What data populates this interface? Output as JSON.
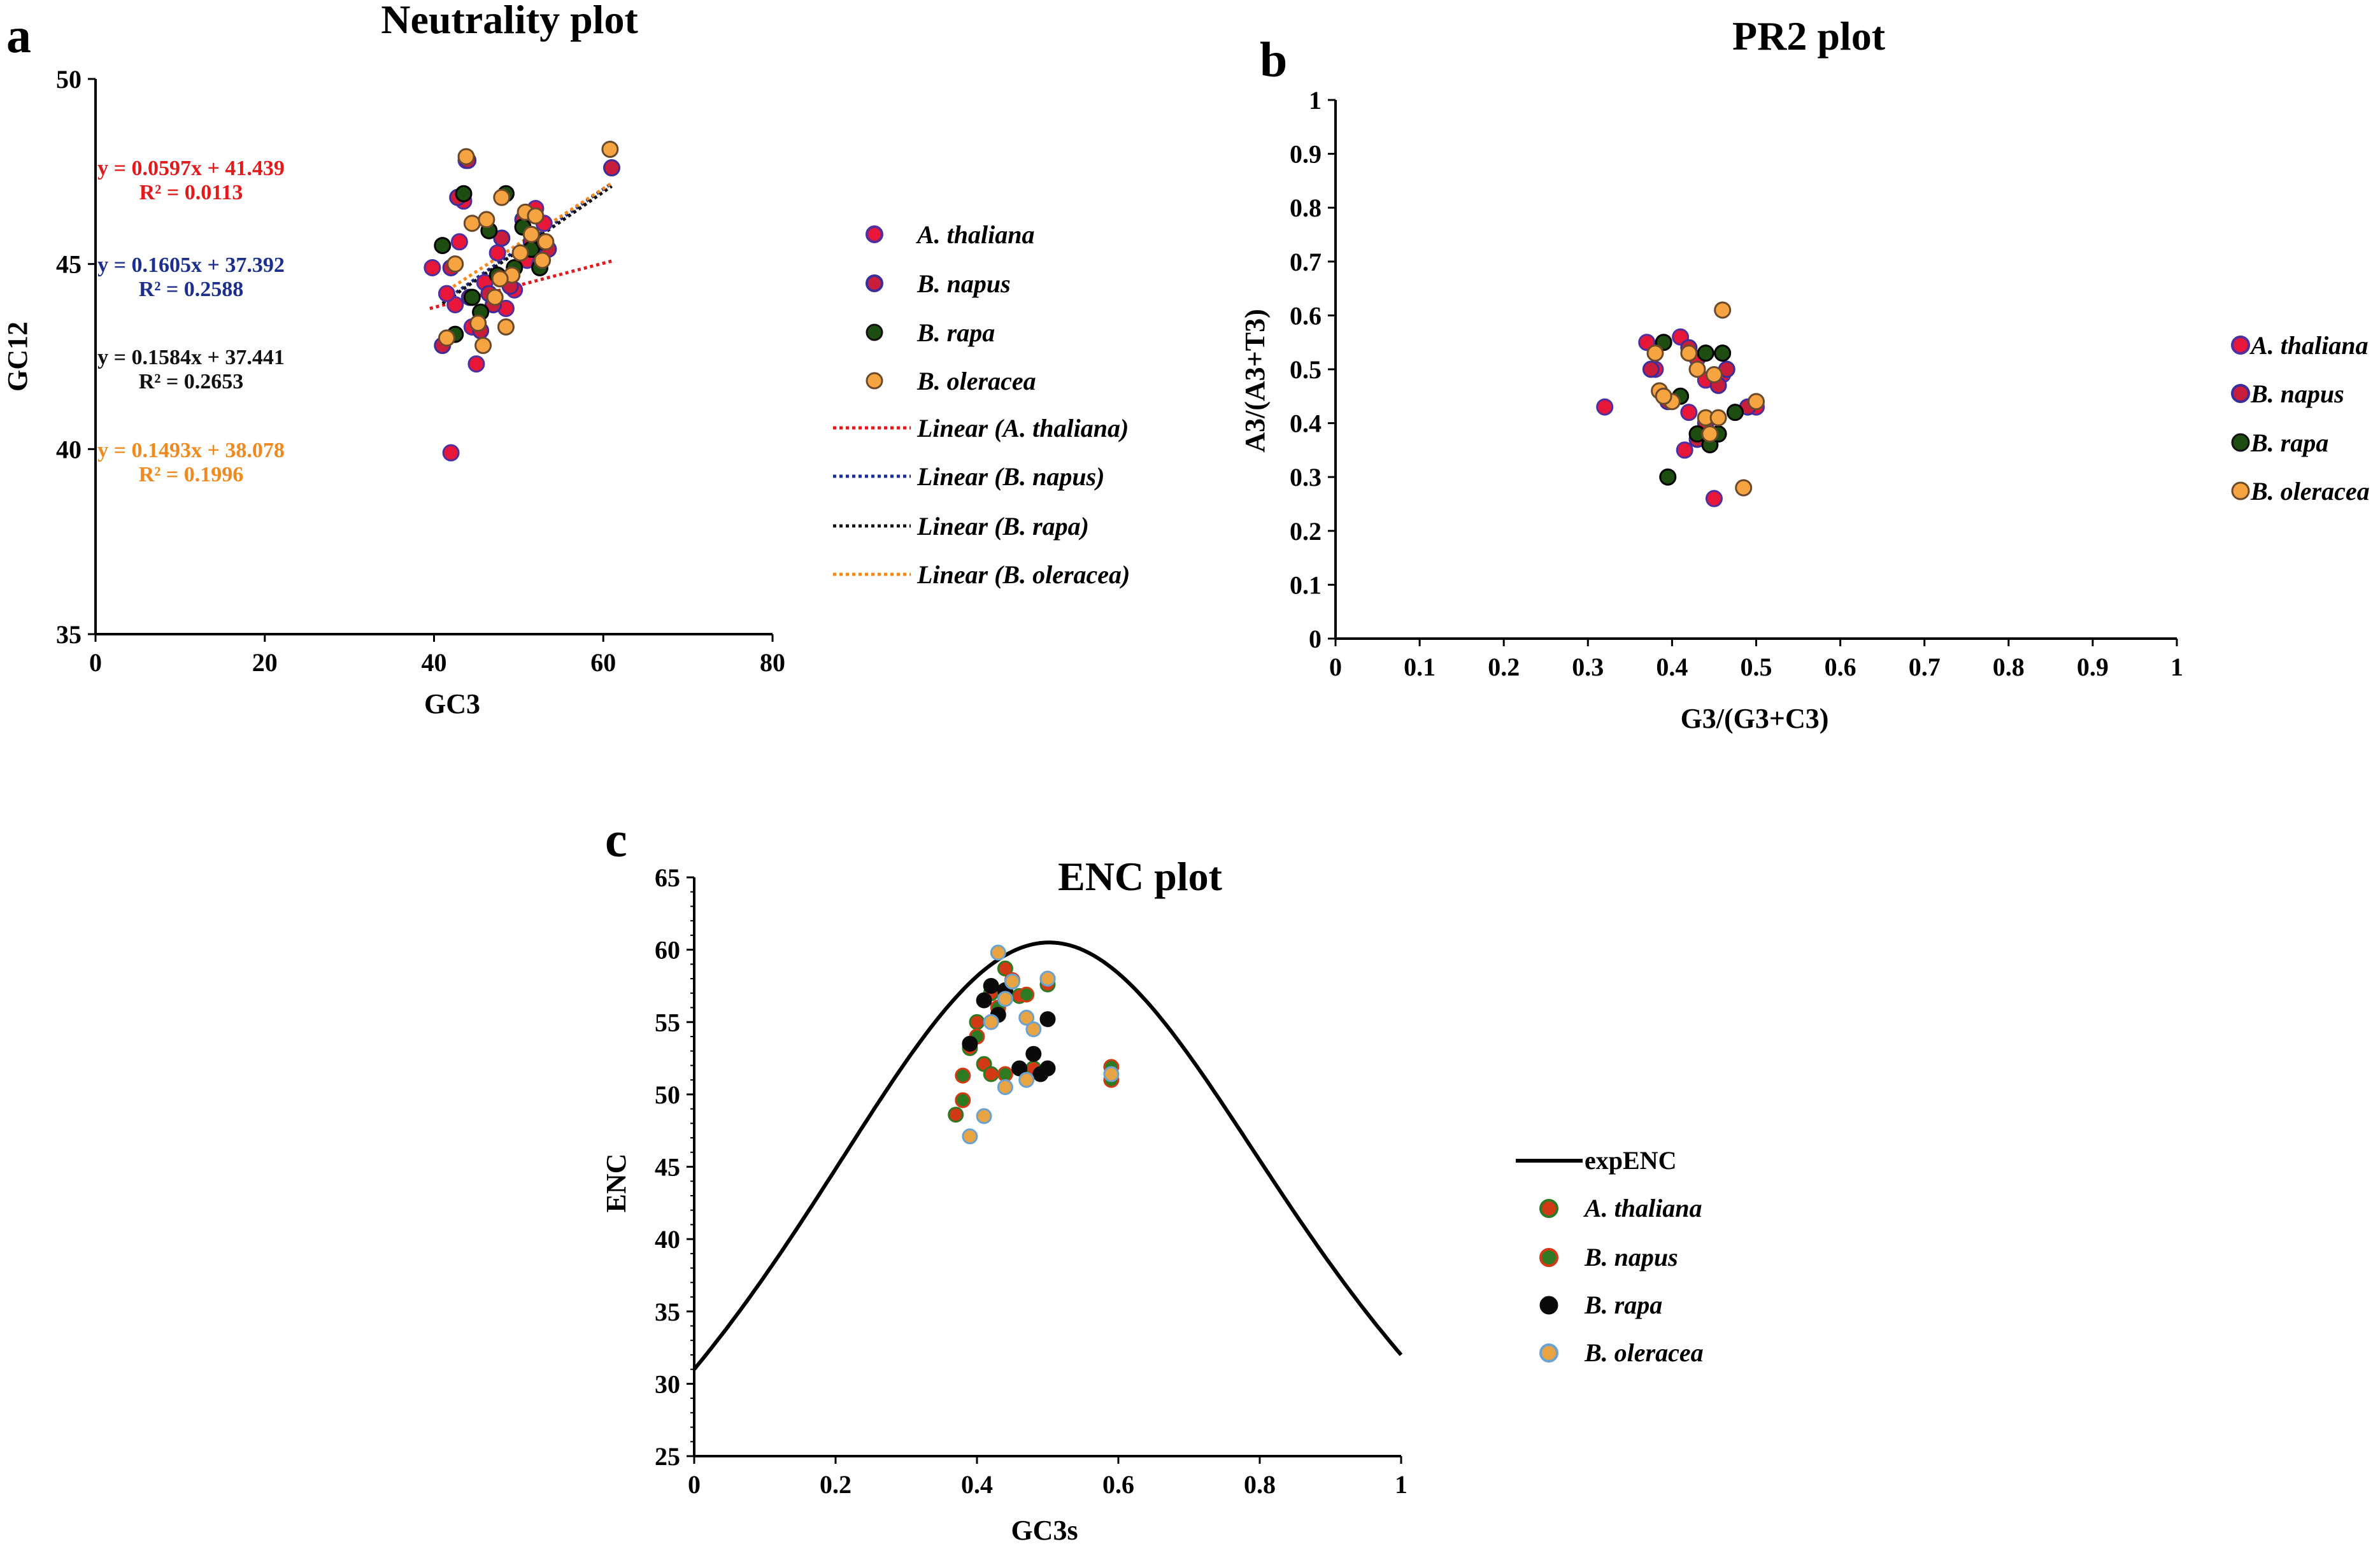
{
  "colors": {
    "a_thaliana_fill": "#e8173a",
    "a_thaliana_edge": "#5030a0",
    "b_napus_fill": "#c81e3c",
    "b_napus_edge": "#3b2d9b",
    "b_rapa_fill": "#1e4d12",
    "b_oleracea_fill": "#f5a441",
    "b_oleracea_edge": "#6a4a2a",
    "enc_thaliana": "#d23a16",
    "enc_napus": "#2e7a22",
    "enc_rapa": "#0a0a0a",
    "enc_oleracea": "#e8a442",
    "enc_oleracea_edge": "#6aa2d2",
    "eq_red": "#e31a1c",
    "eq_blue": "#1c2f8f",
    "eq_black": "#111111",
    "eq_orange": "#f08a1f"
  },
  "chart_data": [
    {
      "panel": "a",
      "type": "scatter",
      "title": "Neutrality plot",
      "xlabel": "GC3",
      "ylabel": "GC12",
      "xlim": [
        0,
        80
      ],
      "ylim": [
        35,
        50
      ],
      "xticks": [
        "0",
        "20",
        "40",
        "60",
        "80"
      ],
      "yticks": [
        "35",
        "40",
        "45",
        "50"
      ],
      "equations": [
        {
          "line": "y = 0.0597x + 41.439",
          "r2": "R² = 0.0113",
          "color_key": "eq_red"
        },
        {
          "line": "y = 0.1605x + 37.392",
          "r2": "R² = 0.2588",
          "color_key": "eq_blue"
        },
        {
          "line": "y = 0.1584x + 37.441",
          "r2": "R² = 0.2653",
          "color_key": "eq_black"
        },
        {
          "line": "y = 0.1493x + 38.078",
          "r2": "R² = 0.1996",
          "color_key": "eq_orange"
        }
      ],
      "legend": [
        "A. thaliana",
        "B. napus",
        "B. rapa",
        "B. oleracea",
        "Linear (A. thaliana)",
        "Linear (B. napus)",
        "Linear (B. rapa)",
        "Linear (B. oleracea)"
      ],
      "trendlines": [
        {
          "name": "Linear (A. thaliana)",
          "slope": 0.0597,
          "intercept": 41.439,
          "x": [
            39.5,
            61
          ],
          "color_key": "eq_red"
        },
        {
          "name": "Linear (B. napus)",
          "slope": 0.1605,
          "intercept": 37.392,
          "x": [
            42,
            61
          ],
          "color_key": "eq_blue"
        },
        {
          "name": "Linear (B. rapa)",
          "slope": 0.1584,
          "intercept": 37.441,
          "x": [
            41,
            61
          ],
          "color_key": "eq_black"
        },
        {
          "name": "Linear (B. oleracea)",
          "slope": 0.1493,
          "intercept": 38.078,
          "x": [
            41,
            61
          ],
          "color_key": "eq_orange"
        }
      ],
      "series": [
        {
          "name": "A. thaliana",
          "fill_key": "a_thaliana_fill",
          "edge_key": "a_thaliana_edge",
          "points": [
            [
              39.8,
              44.9
            ],
            [
              42,
              39.9
            ],
            [
              42.5,
              43.9
            ],
            [
              43,
              45.6
            ],
            [
              43.5,
              46.7
            ],
            [
              44.5,
              43.3
            ],
            [
              45,
              42.3
            ],
            [
              46,
              44.5
            ],
            [
              47.5,
              45.3
            ],
            [
              48.5,
              43.8
            ],
            [
              49.5,
              44.3
            ],
            [
              51,
              45.1
            ],
            [
              52,
              46.5
            ],
            [
              52.5,
              45.0
            ],
            [
              53,
              46.1
            ],
            [
              43.8,
              47.8
            ],
            [
              41.5,
              44.2
            ]
          ]
        },
        {
          "name": "B. napus",
          "fill_key": "b_napus_fill",
          "edge_key": "b_napus_edge",
          "points": [
            [
              41,
              42.8
            ],
            [
              42,
              44.9
            ],
            [
              42.8,
              46.8
            ],
            [
              44,
              47.8
            ],
            [
              45.5,
              43.2
            ],
            [
              46.5,
              44.2
            ],
            [
              48,
              45.7
            ],
            [
              49,
              44.4
            ],
            [
              50.5,
              46.2
            ],
            [
              51.5,
              45.6
            ],
            [
              52.5,
              45.3
            ],
            [
              53.5,
              45.4
            ],
            [
              61,
              47.6
            ],
            [
              47,
              43.9
            ],
            [
              44.2,
              44.1
            ]
          ]
        },
        {
          "name": "B. rapa",
          "fill_key": "b_rapa_fill",
          "edge_key": "b_rapa_edge",
          "points": [
            [
              41,
              45.5
            ],
            [
              42.5,
              43.1
            ],
            [
              44.5,
              44.1
            ],
            [
              45.5,
              43.7
            ],
            [
              46.5,
              45.9
            ],
            [
              47.5,
              44.7
            ],
            [
              48.5,
              46.9
            ],
            [
              49.5,
              44.9
            ],
            [
              50.5,
              46.0
            ],
            [
              51.5,
              45.4
            ],
            [
              52.5,
              44.9
            ],
            [
              53,
              45.6
            ],
            [
              43.5,
              46.9
            ]
          ]
        },
        {
          "name": "B. oleracea",
          "fill_key": "b_oleracea_fill",
          "edge_key": "b_oleracea_edge",
          "points": [
            [
              41.5,
              43.0
            ],
            [
              42.5,
              45.0
            ],
            [
              43.8,
              47.9
            ],
            [
              44.5,
              46.1
            ],
            [
              45.2,
              43.4
            ],
            [
              45.8,
              42.8
            ],
            [
              46.2,
              46.2
            ],
            [
              47.2,
              44.1
            ],
            [
              48,
              46.8
            ],
            [
              48.5,
              43.3
            ],
            [
              49.2,
              44.7
            ],
            [
              50.2,
              45.3
            ],
            [
              50.8,
              46.4
            ],
            [
              51.5,
              45.8
            ],
            [
              52,
              46.3
            ],
            [
              52.8,
              45.1
            ],
            [
              53.2,
              45.6
            ],
            [
              60.8,
              48.1
            ],
            [
              47.8,
              44.6
            ]
          ]
        }
      ]
    },
    {
      "panel": "b",
      "type": "scatter",
      "title": "PR2 plot",
      "xlabel": "G3/(G3+C3)",
      "ylabel": "A3/(A3+T3)",
      "xlim": [
        0,
        1
      ],
      "ylim": [
        0,
        1
      ],
      "xticks": [
        "0",
        "0.1",
        "0.2",
        "0.3",
        "0.4",
        "0.5",
        "0.6",
        "0.7",
        "0.8",
        "0.9",
        "1"
      ],
      "yticks": [
        "0",
        "0.1",
        "0.2",
        "0.3",
        "0.4",
        "0.5",
        "0.6",
        "0.7",
        "0.8",
        "0.9",
        "1"
      ],
      "legend": [
        "A. thaliana",
        "B. napus",
        "B. rapa",
        "B. oleracea"
      ],
      "series": [
        {
          "name": "A. thaliana",
          "fill_key": "a_thaliana_fill",
          "edge_key": "a_thaliana_edge",
          "points": [
            [
              0.32,
              0.43
            ],
            [
              0.37,
              0.55
            ],
            [
              0.38,
              0.5
            ],
            [
              0.41,
              0.56
            ],
            [
              0.415,
              0.35
            ],
            [
              0.43,
              0.52
            ],
            [
              0.44,
              0.48
            ],
            [
              0.45,
              0.26
            ],
            [
              0.46,
              0.49
            ],
            [
              0.5,
              0.43
            ],
            [
              0.42,
              0.42
            ]
          ]
        },
        {
          "name": "B. napus",
          "fill_key": "b_napus_fill",
          "edge_key": "b_napus_edge",
          "points": [
            [
              0.375,
              0.5
            ],
            [
              0.395,
              0.44
            ],
            [
              0.42,
              0.54
            ],
            [
              0.44,
              0.4
            ],
            [
              0.455,
              0.47
            ],
            [
              0.465,
              0.5
            ],
            [
              0.49,
              0.43
            ],
            [
              0.43,
              0.37
            ]
          ]
        },
        {
          "name": "B. rapa",
          "fill_key": "b_rapa_fill",
          "edge_key": "b_rapa_edge",
          "points": [
            [
              0.39,
              0.55
            ],
            [
              0.395,
              0.3
            ],
            [
              0.41,
              0.45
            ],
            [
              0.43,
              0.38
            ],
            [
              0.44,
              0.53
            ],
            [
              0.445,
              0.36
            ],
            [
              0.455,
              0.38
            ],
            [
              0.46,
              0.53
            ],
            [
              0.475,
              0.42
            ]
          ]
        },
        {
          "name": "B. oleracea",
          "fill_key": "b_oleracea_fill",
          "edge_key": "b_oleracea_edge",
          "points": [
            [
              0.38,
              0.53
            ],
            [
              0.385,
              0.46
            ],
            [
              0.4,
              0.44
            ],
            [
              0.42,
              0.53
            ],
            [
              0.43,
              0.5
            ],
            [
              0.44,
              0.41
            ],
            [
              0.445,
              0.38
            ],
            [
              0.45,
              0.49
            ],
            [
              0.455,
              0.41
            ],
            [
              0.46,
              0.61
            ],
            [
              0.485,
              0.28
            ],
            [
              0.5,
              0.44
            ],
            [
              0.39,
              0.45
            ]
          ]
        }
      ]
    },
    {
      "panel": "c",
      "type": "scatter",
      "title": "ENC plot",
      "xlabel": "GC3s",
      "ylabel": "ENC",
      "xlim": [
        0,
        1
      ],
      "ylim": [
        25,
        65
      ],
      "xticks": [
        "0",
        "0.2",
        "0.4",
        "0.6",
        "0.8",
        "1"
      ],
      "yticks": [
        "25",
        "30",
        "35",
        "40",
        "45",
        "50",
        "55",
        "60",
        "65"
      ],
      "legend": [
        "expENC",
        "A. thaliana",
        "B. napus",
        "B. rapa",
        "B. oleracea"
      ],
      "curve": {
        "name": "expENC",
        "formula": "2 + s + 29/(s^2 + (1-s)^2)",
        "x": [
          0,
          1
        ]
      },
      "series": [
        {
          "name": "A. thaliana",
          "fill_key": "enc_thaliana",
          "edge_key": "enc_napus",
          "points": [
            [
              0.37,
              48.6
            ],
            [
              0.39,
              53.2
            ],
            [
              0.4,
              55
            ],
            [
              0.41,
              52.1
            ],
            [
              0.42,
              57
            ],
            [
              0.44,
              58.7
            ],
            [
              0.46,
              56.8
            ],
            [
              0.48,
              51.8
            ],
            [
              0.5,
              57.6
            ],
            [
              0.42,
              51.4
            ]
          ]
        },
        {
          "name": "B. napus",
          "fill_key": "enc_napus",
          "edge_key": "enc_thaliana",
          "points": [
            [
              0.38,
              49.6
            ],
            [
              0.38,
              51.3
            ],
            [
              0.4,
              54
            ],
            [
              0.43,
              56
            ],
            [
              0.45,
              57.9
            ],
            [
              0.47,
              56.9
            ],
            [
              0.5,
              58
            ],
            [
              0.59,
              51.9
            ],
            [
              0.59,
              51.0
            ],
            [
              0.44,
              51.4
            ]
          ]
        },
        {
          "name": "B. rapa",
          "fill_key": "enc_rapa",
          "edge_key": "enc_rapa",
          "points": [
            [
              0.39,
              53.5
            ],
            [
              0.41,
              56.5
            ],
            [
              0.42,
              57.5
            ],
            [
              0.43,
              55.5
            ],
            [
              0.46,
              51.8
            ],
            [
              0.48,
              52.8
            ],
            [
              0.49,
              51.4
            ],
            [
              0.5,
              55.2
            ],
            [
              0.5,
              51.8
            ],
            [
              0.44,
              57.2
            ]
          ]
        },
        {
          "name": "B. oleracea",
          "fill_key": "enc_oleracea",
          "edge_key": "enc_oleracea_edge",
          "points": [
            [
              0.39,
              47.1
            ],
            [
              0.41,
              48.5
            ],
            [
              0.42,
              55
            ],
            [
              0.43,
              59.8
            ],
            [
              0.44,
              56.6
            ],
            [
              0.45,
              57.8
            ],
            [
              0.47,
              55.3
            ],
            [
              0.48,
              54.5
            ],
            [
              0.5,
              58
            ],
            [
              0.59,
              51.4
            ],
            [
              0.44,
              50.5
            ],
            [
              0.47,
              51
            ]
          ]
        }
      ]
    }
  ]
}
